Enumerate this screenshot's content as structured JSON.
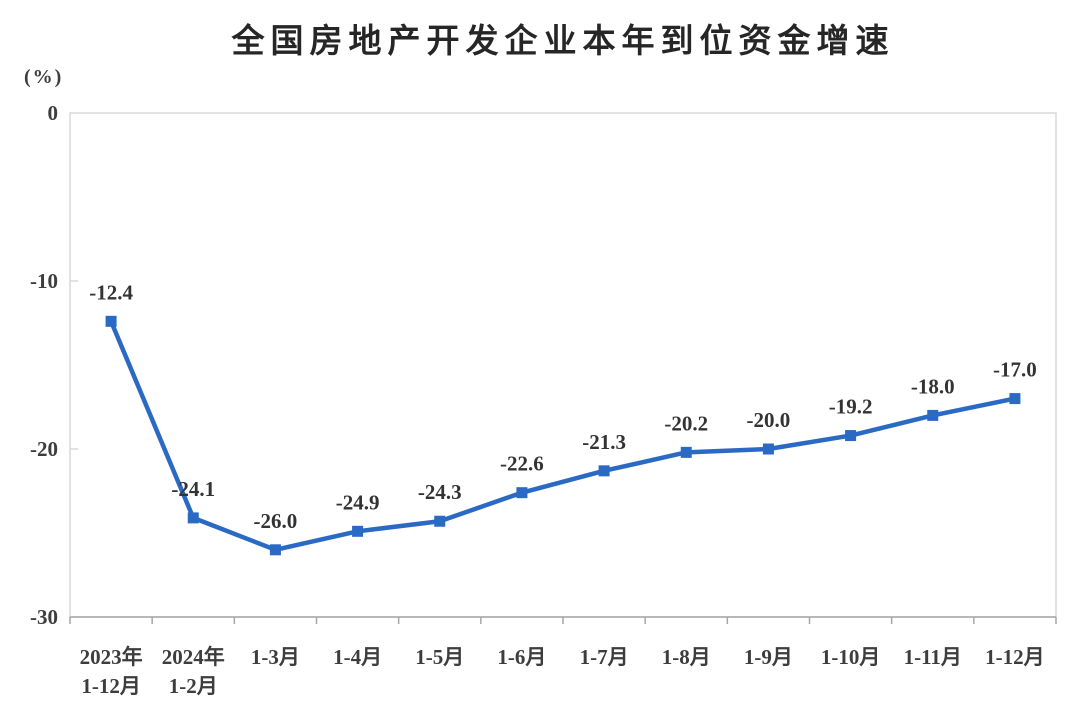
{
  "chart_data": {
    "type": "line",
    "title": "全国房地产开发企业本年到位资金增速",
    "unit_label": "(%)",
    "categories": [
      [
        "2023年",
        "1-12月"
      ],
      [
        "2024年",
        "1-2月"
      ],
      [
        "1-3月"
      ],
      [
        "1-4月"
      ],
      [
        "1-5月"
      ],
      [
        "1-6月"
      ],
      [
        "1-7月"
      ],
      [
        "1-8月"
      ],
      [
        "1-9月"
      ],
      [
        "1-10月"
      ],
      [
        "1-11月"
      ],
      [
        "1-12月"
      ]
    ],
    "values": [
      -12.4,
      -24.1,
      -26.0,
      -24.9,
      -24.3,
      -22.6,
      -21.3,
      -20.2,
      -20.0,
      -19.2,
      -18.0,
      -17.0
    ],
    "labels": [
      "-12.4",
      "-24.1",
      "-26.0",
      "-24.9",
      "-24.3",
      "-22.6",
      "-21.3",
      "-20.2",
      "-20.0",
      "-19.2",
      "-18.0",
      "-17.0"
    ],
    "y_ticks": [
      0,
      -10,
      -20,
      -30
    ],
    "ylim": [
      -30,
      0
    ],
    "grid": false,
    "legend_position": "none",
    "marker": "square",
    "colors": {
      "line": "#2a6ac4",
      "plot_border": "#d9d9d9",
      "x_axis": "#a6a6a6",
      "text": "#3d3d3d"
    }
  }
}
